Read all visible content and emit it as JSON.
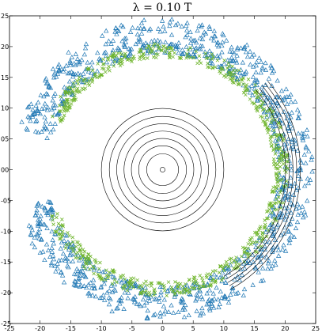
{
  "chart_data": {
    "type": "scatter",
    "title": "λ = 0.10 T",
    "xlim": [
      -25,
      25
    ],
    "ylim": [
      -25,
      25
    ],
    "x_ticks": [
      -25,
      -20,
      -15,
      -10,
      -5,
      0,
      5,
      10,
      15,
      20,
      25
    ],
    "x_tick_labels": [
      "-25",
      "-20",
      "-15",
      "-10",
      "-5",
      "0",
      "5",
      "10",
      "15",
      "20",
      "25"
    ],
    "y_ticks": [
      -25,
      -20,
      -15,
      -10,
      -5,
      0,
      5,
      10,
      15,
      20,
      25
    ],
    "y_tick_labels": [
      "-25",
      "-20",
      "-15",
      "-10",
      "-05",
      "00",
      "05",
      "10",
      "15",
      "20",
      "25"
    ],
    "grid": false,
    "legend": "none",
    "colors": {
      "triangles": "#1f77b4",
      "crosses": "#6fb52c",
      "contours": "#000000"
    },
    "series": [
      {
        "marker": "triangle",
        "color": "#1f77b4",
        "arc_from_deg": -165,
        "arc_to_deg": 165,
        "radius_min": 19,
        "radius_max": 24.5,
        "count": 1100
      },
      {
        "marker": "x",
        "color": "#6fb52c",
        "arc_from_deg": -158,
        "arc_to_deg": 155,
        "radius_min": 18.2,
        "radius_max": 20.5,
        "count": 700
      }
    ],
    "concentric_circles": {
      "center": [
        0,
        0
      ],
      "radii": [
        0.4,
        2.6,
        3.9,
        5.1,
        6.3,
        7.5,
        8.7,
        10
      ]
    },
    "outer_arcs": {
      "center": [
        0,
        0
      ],
      "radii": [
        20,
        20.6,
        21.2,
        21.8,
        22.4
      ],
      "from_deg": -60,
      "to_deg": 40
    }
  }
}
